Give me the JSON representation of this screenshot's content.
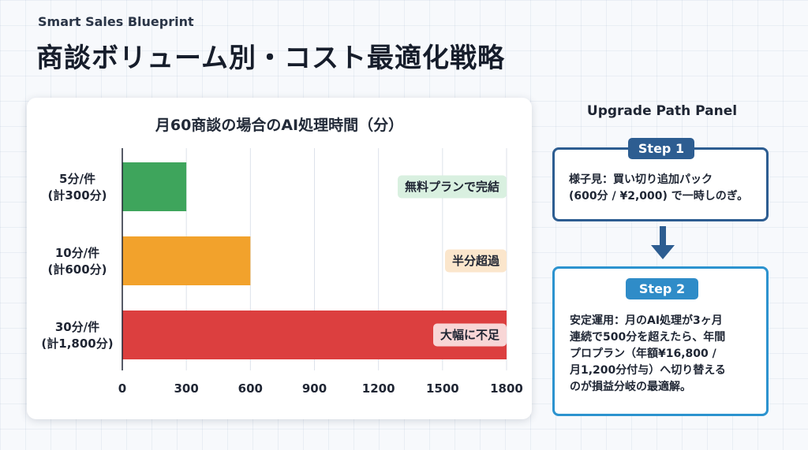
{
  "header": {
    "eyebrow": "Smart Sales Blueprint",
    "title": "商談ボリューム別・コスト最適化戦略"
  },
  "chart_data": {
    "type": "bar",
    "orientation": "horizontal",
    "title": "月60商談の場合のAI処理時間（分）",
    "categories": [
      {
        "line1": "5分/件",
        "line2": "(計300分)"
      },
      {
        "line1": "10分/件",
        "line2": "(計600分)"
      },
      {
        "line1": "30分/件",
        "line2": "(計1,800分)"
      }
    ],
    "values": [
      300,
      600,
      1800
    ],
    "bar_colors": [
      "#3ea55c",
      "#f2a22c",
      "#dc3f3f"
    ],
    "annotations": [
      {
        "text": "無料プランで完結",
        "bg": "#d9f0e0"
      },
      {
        "text": "半分超過",
        "bg": "#fbe6cc"
      },
      {
        "text": "大幅に不足",
        "bg": "#f8d6d6"
      }
    ],
    "xlim": [
      0,
      1800
    ],
    "xticks": [
      0,
      300,
      600,
      900,
      1200,
      1500,
      1800
    ],
    "xlabel": "",
    "ylabel": "",
    "grid": true
  },
  "upgrade_panel": {
    "title": "Upgrade Path Panel",
    "step1": {
      "badge": "Step 1",
      "lines": [
        "様子見：買い切り追加パック",
        "(600分 / ¥2,000) で一時しのぎ。"
      ]
    },
    "step2": {
      "badge": "Step 2",
      "lines": [
        "安定運用：月のAI処理が3ヶ月",
        "連続で500分を超えたら、年間",
        "プロプラン（年額¥16,800 /",
        "月1,200分付与）へ切り替える",
        "のが損益分岐の最適解。"
      ]
    },
    "colors": {
      "step1": "#2d5d91",
      "step2": "#2c93cf"
    }
  }
}
